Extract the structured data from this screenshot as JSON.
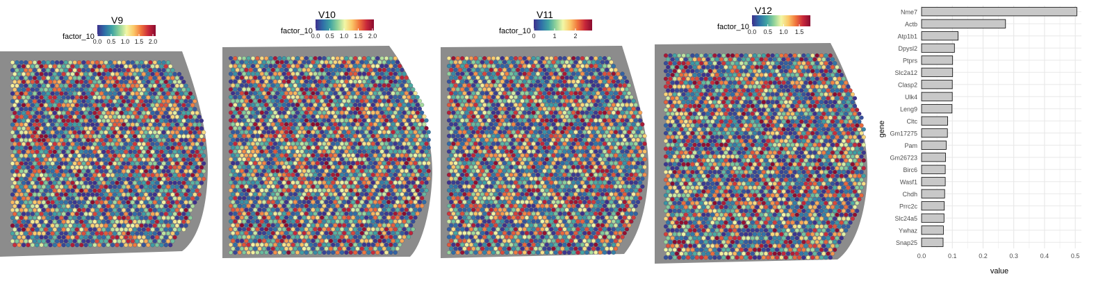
{
  "colors": {
    "scale": [
      "#3d2f8c",
      "#2f6ea8",
      "#3fa3a3",
      "#8fd29a",
      "#f2f7a6",
      "#fbc768",
      "#f0743c",
      "#c8283a",
      "#8a0b2f"
    ],
    "tissue": "#8c8c8c",
    "background_spot": "#dcdcdc",
    "bar_fill": "#c8c8c8",
    "bar_stroke": "#000000",
    "grid": "#e6e6e6"
  },
  "chart_data": [
    {
      "type": "spatial",
      "title": "V9",
      "legend_title": "factor_10",
      "legend_ticks": [
        "0.0",
        "0.5",
        "1.0",
        "1.5",
        "2.0"
      ],
      "range": [
        0,
        2.1
      ]
    },
    {
      "type": "spatial",
      "title": "V10",
      "legend_title": "factor_10",
      "legend_ticks": [
        "0.0",
        "0.5",
        "1.0",
        "1.5",
        "2.0"
      ],
      "range": [
        0,
        2.05
      ]
    },
    {
      "type": "spatial",
      "title": "V11",
      "legend_title": "factor_10",
      "legend_ticks": [
        "0",
        "1",
        "2"
      ],
      "range": [
        0,
        2.8
      ]
    },
    {
      "type": "spatial",
      "title": "V12",
      "legend_title": "factor_10",
      "legend_ticks": [
        "0.0",
        "0.5",
        "1.0",
        "1.5"
      ],
      "range": [
        0,
        1.85
      ]
    },
    {
      "type": "bar",
      "orientation": "horizontal",
      "xlabel": "value",
      "ylabel": "gene",
      "xlim": [
        0,
        0.52
      ],
      "xticks": [
        "0.0",
        "0.1",
        "0.2",
        "0.3",
        "0.4",
        "0.5"
      ],
      "categories": [
        "Nme7",
        "Actb",
        "Atp1b1",
        "Dpysl2",
        "Ptprs",
        "Slc2a12",
        "Clasp2",
        "Ulk4",
        "Leng9",
        "Cltc",
        "Gm17275",
        "Pam",
        "Gm26723",
        "Birc6",
        "Wasf1",
        "Chdh",
        "Prrc2c",
        "Slc24a5",
        "Ywhaz",
        "Snap25"
      ],
      "values": [
        0.505,
        0.273,
        0.119,
        0.107,
        0.101,
        0.101,
        0.1,
        0.1,
        0.099,
        0.085,
        0.084,
        0.08,
        0.078,
        0.077,
        0.077,
        0.075,
        0.074,
        0.073,
        0.071,
        0.07
      ]
    }
  ]
}
